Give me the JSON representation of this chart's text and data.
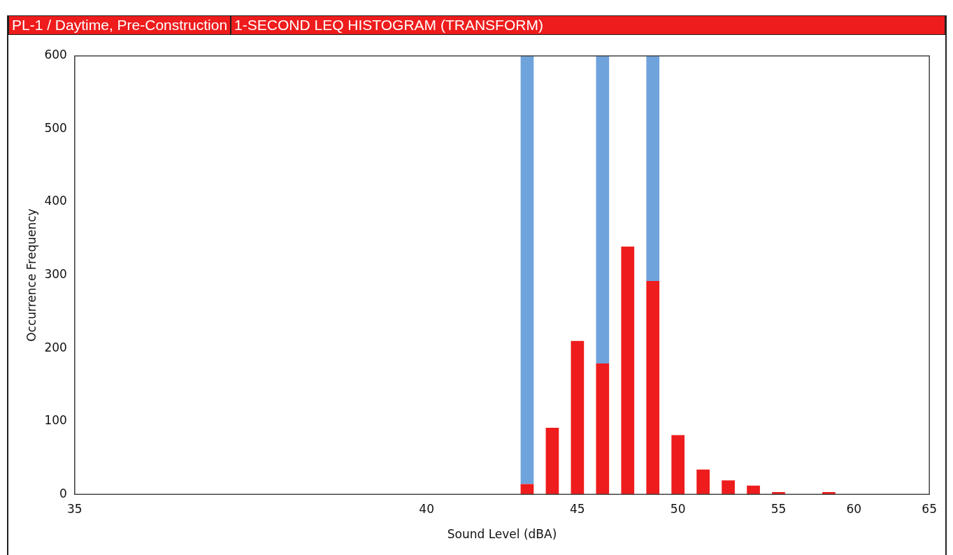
{
  "chart_data": {
    "type": "bar",
    "title": "PL-1 / Daytime, Pre-Construction",
    "subtitle": "1-SECOND LEQ HISTOGRAM (TRANSFORM)",
    "xlabel": "Sound Level (dBA)",
    "ylabel": "Occurrence Frequency",
    "categories": [
      "35",
      null,
      null,
      null,
      null,
      null,
      null,
      null,
      null,
      null,
      null,
      null,
      null,
      null,
      "40",
      null,
      null,
      null,
      null,
      null,
      "45",
      null,
      null,
      null,
      "50",
      null,
      null,
      null,
      "55",
      null,
      null,
      "60",
      null,
      null,
      "65"
    ],
    "stacked": true,
    "ylim": [
      0,
      600
    ],
    "yticks": [
      0,
      100,
      200,
      300,
      400,
      500,
      600
    ],
    "grid": false,
    "legend": false,
    "series": [
      {
        "color": "#ee1c1c",
        "values": [
          null,
          null,
          null,
          null,
          null,
          null,
          null,
          null,
          null,
          null,
          null,
          null,
          null,
          null,
          null,
          null,
          null,
          null,
          14,
          91,
          210,
          179,
          339,
          292,
          81,
          34,
          19,
          12,
          3,
          null,
          3,
          null,
          null,
          null,
          null
        ]
      },
      {
        "color": "#6fa3dc",
        "values": [
          null,
          null,
          null,
          null,
          null,
          null,
          null,
          null,
          null,
          null,
          null,
          null,
          null,
          null,
          null,
          null,
          null,
          null,
          586,
          null,
          null,
          421,
          null,
          308,
          null,
          null,
          null,
          null,
          null,
          null,
          null,
          null,
          null,
          null,
          null
        ]
      }
    ]
  }
}
